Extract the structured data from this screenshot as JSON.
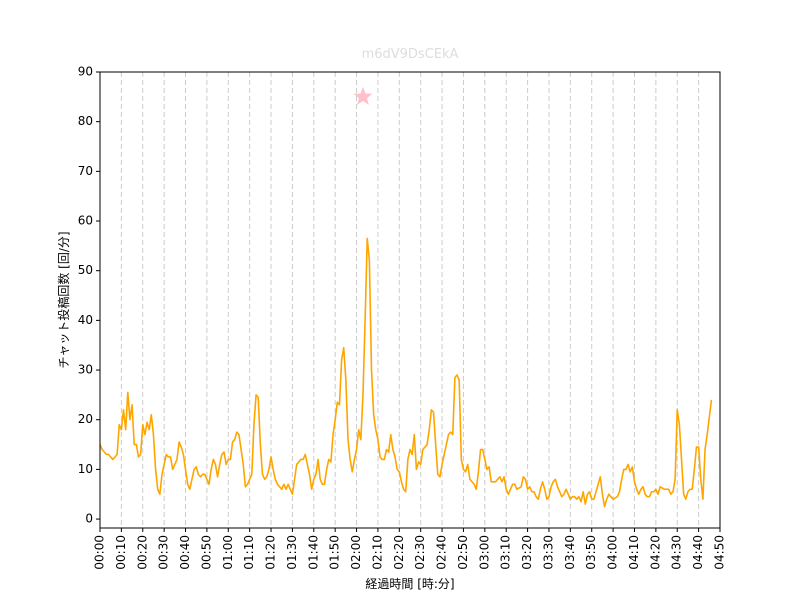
{
  "chart_data": {
    "type": "line",
    "title": "m6dV9DsCEkA",
    "title_color": "#dddddd",
    "x_label": "経過時間 [時:分]",
    "y_label": "チャット投稿回数 [回/分]",
    "xlim": [
      0,
      290
    ],
    "ylim": [
      -1.8,
      90
    ],
    "yticks": [
      0,
      10,
      20,
      30,
      40,
      50,
      60,
      70,
      80,
      90
    ],
    "xticks": [
      {
        "value": 0,
        "label": "00:00"
      },
      {
        "value": 10,
        "label": "00:10"
      },
      {
        "value": 20,
        "label": "00:20"
      },
      {
        "value": 30,
        "label": "00:30"
      },
      {
        "value": 40,
        "label": "00:40"
      },
      {
        "value": 50,
        "label": "00:50"
      },
      {
        "value": 60,
        "label": "01:00"
      },
      {
        "value": 70,
        "label": "01:10"
      },
      {
        "value": 80,
        "label": "01:20"
      },
      {
        "value": 90,
        "label": "01:30"
      },
      {
        "value": 100,
        "label": "01:40"
      },
      {
        "value": 110,
        "label": "01:50"
      },
      {
        "value": 120,
        "label": "02:00"
      },
      {
        "value": 130,
        "label": "02:10"
      },
      {
        "value": 140,
        "label": "02:20"
      },
      {
        "value": 150,
        "label": "02:30"
      },
      {
        "value": 160,
        "label": "02:40"
      },
      {
        "value": 170,
        "label": "02:50"
      },
      {
        "value": 180,
        "label": "03:00"
      },
      {
        "value": 190,
        "label": "03:10"
      },
      {
        "value": 200,
        "label": "03:20"
      },
      {
        "value": 210,
        "label": "03:30"
      },
      {
        "value": 220,
        "label": "03:40"
      },
      {
        "value": 230,
        "label": "03:50"
      },
      {
        "value": 240,
        "label": "04:00"
      },
      {
        "value": 250,
        "label": "04:10"
      },
      {
        "value": 260,
        "label": "04:20"
      },
      {
        "value": 270,
        "label": "04:30"
      },
      {
        "value": 280,
        "label": "04:40"
      },
      {
        "value": 290,
        "label": "04:50"
      }
    ],
    "x_grid": true,
    "grid_color": "#cccccc",
    "x": [
      0,
      1,
      2,
      3,
      4,
      5,
      6,
      7,
      8,
      9,
      10,
      11,
      12,
      13,
      14,
      15,
      16,
      17,
      18,
      19,
      20,
      21,
      22,
      23,
      24,
      25,
      26,
      27,
      28,
      29,
      30,
      31,
      32,
      33,
      34,
      35,
      36,
      37,
      38,
      39,
      40,
      41,
      42,
      43,
      44,
      45,
      46,
      47,
      48,
      49,
      50,
      51,
      52,
      53,
      54,
      55,
      56,
      57,
      58,
      59,
      60,
      61,
      62,
      63,
      64,
      65,
      66,
      67,
      68,
      69,
      70,
      71,
      72,
      73,
      74,
      75,
      76,
      77,
      78,
      79,
      80,
      81,
      82,
      83,
      84,
      85,
      86,
      87,
      88,
      89,
      90,
      91,
      92,
      93,
      94,
      95,
      96,
      97,
      98,
      99,
      100,
      101,
      102,
      103,
      104,
      105,
      106,
      107,
      108,
      109,
      110,
      111,
      112,
      113,
      114,
      115,
      116,
      117,
      118,
      119,
      120,
      121,
      122,
      123,
      124,
      125,
      126,
      127,
      128,
      129,
      130,
      131,
      132,
      133,
      134,
      135,
      136,
      137,
      138,
      139,
      140,
      141,
      142,
      143,
      144,
      145,
      146,
      147,
      148,
      149,
      150,
      151,
      153,
      154,
      155,
      156,
      157,
      158,
      159,
      160,
      161,
      162,
      163,
      164,
      165,
      166,
      167,
      168,
      169,
      170,
      171,
      172,
      173,
      175,
      176,
      177,
      178,
      179,
      180,
      181,
      182,
      183,
      184,
      185,
      186,
      187,
      188,
      189,
      190,
      191,
      192,
      193,
      194,
      195,
      197,
      198,
      199,
      200,
      201,
      202,
      203,
      204,
      205,
      206,
      207,
      208,
      209,
      210,
      211,
      212,
      213,
      214,
      215,
      216,
      217,
      218,
      220,
      221,
      222,
      223,
      224,
      225,
      226,
      227,
      228,
      229,
      230,
      231,
      232,
      233,
      234,
      235,
      236,
      237,
      238,
      239,
      240,
      242,
      243,
      244,
      245,
      246,
      247,
      248,
      249,
      250,
      251,
      252,
      253,
      254,
      255,
      256,
      257,
      258,
      259,
      260,
      261,
      262,
      264,
      265,
      266,
      267,
      268,
      269,
      270,
      271,
      272,
      273,
      274,
      275,
      276,
      277,
      278,
      279,
      280,
      281,
      282,
      283,
      284,
      286
    ],
    "series": [
      {
        "color": "#ffa500",
        "values": [
          15,
          14,
          13.5,
          13,
          13,
          12.5,
          12,
          12.5,
          13,
          19,
          18,
          22,
          18,
          25.5,
          20,
          23,
          15,
          15,
          12.5,
          13,
          19,
          17,
          19.5,
          18,
          21,
          17,
          10,
          6,
          5,
          9,
          11,
          13,
          12.5,
          12.5,
          10,
          11,
          12,
          15.5,
          14.5,
          13,
          10,
          7,
          6,
          8,
          10,
          10.5,
          9,
          8.5,
          9,
          9,
          8,
          7,
          10,
          12,
          11,
          8.5,
          11,
          13,
          13.5,
          11,
          12,
          12,
          15.5,
          16,
          17.5,
          17,
          14,
          11,
          6.5,
          7,
          8,
          9,
          19,
          25,
          24.5,
          15,
          9,
          8,
          8.5,
          10,
          12.5,
          10,
          8,
          7,
          6.5,
          6,
          7,
          6,
          7,
          6,
          5,
          8,
          11,
          11.5,
          12,
          12,
          13,
          11,
          9,
          6,
          8,
          9,
          12,
          8,
          7,
          7,
          10,
          12,
          11.5,
          17,
          20,
          23.5,
          23,
          32,
          34.5,
          28,
          16,
          12,
          9.5,
          12,
          14,
          18,
          16,
          25,
          40,
          56.5,
          52,
          30,
          21,
          18,
          16,
          12.5,
          12,
          12,
          14,
          13.5,
          17,
          14,
          12.5,
          10,
          9.5,
          7.5,
          6,
          5.5,
          12,
          14,
          13,
          17,
          10,
          11.5,
          11,
          14,
          15,
          18,
          22,
          21.5,
          15,
          9,
          8.5,
          11,
          13,
          15,
          17,
          17.5,
          17,
          28.5,
          29,
          28,
          12,
          10,
          9.5,
          11,
          8,
          7,
          6,
          9.5,
          14,
          14,
          12,
          10,
          10.5,
          7.5,
          7.5,
          7.5,
          8,
          8.5,
          7.5,
          8.5,
          6,
          5,
          6,
          7,
          7,
          6,
          6.5,
          8.5,
          8,
          6,
          6.5,
          5.5,
          5.5,
          4.5,
          4,
          6,
          7.5,
          6,
          4,
          4.5,
          6.5,
          7.5,
          8,
          6.5,
          5.5,
          4.5,
          5,
          6,
          4,
          4.5,
          4.5,
          4,
          4.5,
          3.5,
          5.5,
          3,
          5,
          5.5,
          4,
          4,
          5.5,
          7,
          8.5,
          5,
          2.5,
          4,
          5,
          4.5,
          4,
          4.5,
          5.5,
          8,
          10,
          10,
          11,
          9.5,
          10.5,
          7.5,
          6,
          5,
          6,
          6.5,
          5,
          4.5,
          4.5,
          5.5,
          5.5,
          6,
          5,
          6.5,
          6,
          6,
          6,
          5,
          5.5,
          8,
          22,
          19,
          12,
          5,
          4,
          5.5,
          6,
          6,
          10,
          14.5,
          14.5,
          8,
          4,
          14,
          17,
          24
        ]
      }
    ],
    "marker": {
      "x": 123,
      "y": 85,
      "color": "#ffc0cb"
    }
  }
}
